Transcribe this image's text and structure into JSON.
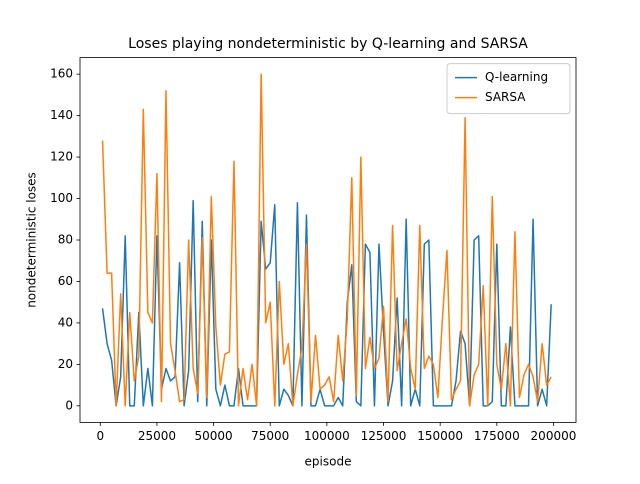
{
  "chart_data": {
    "type": "line",
    "title": "Loses playing nondeterministic by Q-learning and SARSA",
    "xlabel": "episode",
    "ylabel": "nondeterministic loses",
    "x": [
      1000,
      3000,
      5000,
      7000,
      9000,
      11000,
      13000,
      15000,
      17000,
      19000,
      21000,
      23000,
      25000,
      27000,
      29000,
      31000,
      33000,
      35000,
      37000,
      39000,
      41000,
      43000,
      45000,
      47000,
      49000,
      51000,
      53000,
      55000,
      57000,
      59000,
      61000,
      63000,
      65000,
      67000,
      69000,
      71000,
      73000,
      75000,
      77000,
      79000,
      81000,
      83000,
      85000,
      87000,
      89000,
      91000,
      93000,
      95000,
      97000,
      99000,
      101000,
      103000,
      105000,
      107000,
      109000,
      111000,
      113000,
      115000,
      117000,
      119000,
      121000,
      123000,
      125000,
      127000,
      129000,
      131000,
      133000,
      135000,
      137000,
      139000,
      141000,
      143000,
      145000,
      147000,
      149000,
      151000,
      153000,
      155000,
      157000,
      159000,
      161000,
      163000,
      165000,
      167000,
      169000,
      171000,
      173000,
      175000,
      177000,
      179000,
      181000,
      183000,
      185000,
      187000,
      189000,
      191000,
      193000,
      195000,
      197000,
      199000
    ],
    "series": [
      {
        "name": "Q-learning",
        "color": "#1f77b4",
        "values": [
          47,
          30,
          22,
          0,
          14,
          82,
          0,
          0,
          45,
          0,
          18,
          0,
          82,
          8,
          18,
          12,
          14,
          69,
          0,
          17,
          99,
          2,
          89,
          0,
          80,
          8,
          0,
          10,
          0,
          0,
          18,
          0,
          0,
          0,
          0,
          89,
          66,
          69,
          97,
          0,
          8,
          5,
          0,
          98,
          0,
          92,
          0,
          0,
          8,
          0,
          0,
          0,
          4,
          0,
          50,
          68,
          2,
          0,
          78,
          74,
          0,
          78,
          36,
          0,
          12,
          52,
          0,
          90,
          0,
          8,
          0,
          78,
          80,
          0,
          0,
          0,
          0,
          0,
          12,
          36,
          30,
          0,
          80,
          82,
          0,
          0,
          2,
          78,
          0,
          0,
          38,
          0,
          0,
          0,
          0,
          90,
          0,
          8,
          0,
          49
        ]
      },
      {
        "name": "SARSA",
        "color": "#ff7f0e",
        "values": [
          128,
          64,
          64,
          0,
          54,
          0,
          45,
          12,
          24,
          143,
          45,
          40,
          112,
          2,
          152,
          30,
          17,
          2,
          3,
          80,
          18,
          6,
          81,
          4,
          101,
          38,
          10,
          25,
          26,
          118,
          0,
          18,
          3,
          20,
          0,
          160,
          40,
          50,
          0,
          60,
          20,
          30,
          0,
          15,
          28,
          78,
          2,
          34,
          8,
          10,
          14,
          2,
          34,
          12,
          42,
          110,
          5,
          120,
          18,
          33,
          18,
          23,
          48,
          2,
          87,
          17,
          30,
          42,
          18,
          8,
          87,
          18,
          24,
          20,
          4,
          42,
          75,
          3,
          8,
          12,
          139,
          0,
          15,
          20,
          58,
          0,
          101,
          20,
          8,
          30,
          0,
          84,
          4,
          15,
          20,
          14,
          2,
          30,
          10,
          14
        ]
      }
    ],
    "xlim": [
      -8950,
      209950
    ],
    "xticks": [
      0,
      25000,
      50000,
      75000,
      100000,
      125000,
      150000,
      175000,
      200000
    ],
    "ylim": [
      -8,
      168
    ],
    "yticks": [
      0,
      20,
      40,
      60,
      80,
      100,
      120,
      140,
      160
    ],
    "legend": "upper right"
  }
}
